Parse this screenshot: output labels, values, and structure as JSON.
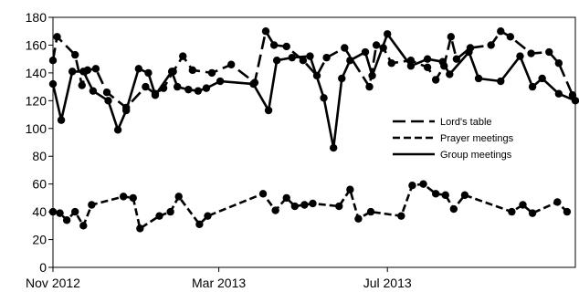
{
  "chart_data": {
    "type": "line",
    "title": "",
    "xlabel": "",
    "ylabel": "",
    "ylim": [
      0,
      180
    ],
    "yticks": [
      0,
      20,
      40,
      60,
      80,
      100,
      120,
      140,
      160,
      180
    ],
    "xlim": [
      "2012-11-01",
      "2013-11-14"
    ],
    "xticks": [
      {
        "date": "2012-11-01",
        "label": "Nov 2012"
      },
      {
        "date": "2013-03-01",
        "label": "Mar 2013"
      },
      {
        "date": "2013-07-01",
        "label": "Jul 2013"
      }
    ],
    "grid": false,
    "legend_position": "right",
    "series": [
      {
        "name": "Lord's table",
        "style": "long-dash",
        "color": "#000000",
        "markers": true,
        "points": [
          [
            "2012-11-01",
            149
          ],
          [
            "2012-11-04",
            166
          ],
          [
            "2012-11-17",
            153
          ],
          [
            "2012-11-22",
            131
          ],
          [
            "2012-11-26",
            142
          ],
          [
            "2012-12-02",
            143
          ],
          [
            "2012-12-10",
            126
          ],
          [
            "2012-12-24",
            115
          ],
          [
            "2013-01-07",
            130
          ],
          [
            "2013-01-14",
            125
          ],
          [
            "2013-01-20",
            129
          ],
          [
            "2013-01-27",
            141
          ],
          [
            "2013-02-03",
            152
          ],
          [
            "2013-02-10",
            142
          ],
          [
            "2013-02-24",
            140
          ],
          [
            "2013-03-10",
            146
          ],
          [
            "2013-03-27",
            133
          ],
          [
            "2013-04-04",
            170
          ],
          [
            "2013-04-10",
            160
          ],
          [
            "2013-04-19",
            159
          ],
          [
            "2013-05-01",
            149
          ],
          [
            "2013-05-11",
            138
          ],
          [
            "2013-05-18",
            151
          ],
          [
            "2013-05-31",
            158
          ],
          [
            "2013-06-18",
            130
          ],
          [
            "2013-06-23",
            160
          ],
          [
            "2013-06-28",
            158
          ],
          [
            "2013-07-04",
            147
          ],
          [
            "2013-07-18",
            149
          ],
          [
            "2013-07-30",
            144
          ],
          [
            "2013-08-05",
            135
          ],
          [
            "2013-08-11",
            145
          ],
          [
            "2013-08-16",
            166
          ],
          [
            "2013-08-20",
            150
          ],
          [
            "2013-08-30",
            158
          ],
          [
            "2013-09-14",
            160
          ],
          [
            "2013-09-21",
            170
          ],
          [
            "2013-09-28",
            166
          ],
          [
            "2013-10-13",
            154
          ],
          [
            "2013-10-26",
            155
          ],
          [
            "2013-11-02",
            147
          ],
          [
            "2013-11-12",
            124
          ]
        ]
      },
      {
        "name": "Prayer meetings",
        "style": "dash",
        "color": "#000000",
        "markers": true,
        "points": [
          [
            "2012-11-01",
            40
          ],
          [
            "2012-11-06",
            39
          ],
          [
            "2012-11-11",
            34
          ],
          [
            "2012-11-17",
            40
          ],
          [
            "2012-11-23",
            30
          ],
          [
            "2012-11-29",
            45
          ],
          [
            "2012-12-22",
            51
          ],
          [
            "2012-12-29",
            50
          ],
          [
            "2013-01-03",
            28
          ],
          [
            "2013-01-17",
            37
          ],
          [
            "2013-01-25",
            40
          ],
          [
            "2013-01-31",
            51
          ],
          [
            "2013-02-15",
            31
          ],
          [
            "2013-02-21",
            37
          ],
          [
            "2013-04-02",
            53
          ],
          [
            "2013-04-11",
            41
          ],
          [
            "2013-04-19",
            50
          ],
          [
            "2013-04-25",
            44
          ],
          [
            "2013-05-02",
            45
          ],
          [
            "2013-05-08",
            46
          ],
          [
            "2013-05-27",
            44
          ],
          [
            "2013-06-04",
            56
          ],
          [
            "2013-06-10",
            35
          ],
          [
            "2013-06-19",
            40
          ],
          [
            "2013-07-11",
            37
          ],
          [
            "2013-07-19",
            59
          ],
          [
            "2013-07-27",
            60
          ],
          [
            "2013-08-05",
            53
          ],
          [
            "2013-08-12",
            52
          ],
          [
            "2013-08-18",
            42
          ],
          [
            "2013-08-26",
            52
          ],
          [
            "2013-09-29",
            40
          ],
          [
            "2013-10-07",
            45
          ],
          [
            "2013-10-14",
            39
          ],
          [
            "2013-11-01",
            47
          ],
          [
            "2013-11-08",
            40
          ]
        ]
      },
      {
        "name": "Group meetings",
        "style": "solid",
        "color": "#000000",
        "markers": true,
        "points": [
          [
            "2012-11-01",
            132
          ],
          [
            "2012-11-07",
            106
          ],
          [
            "2012-11-15",
            141
          ],
          [
            "2012-11-23",
            141
          ],
          [
            "2012-11-30",
            127
          ],
          [
            "2012-12-11",
            120
          ],
          [
            "2012-12-18",
            99
          ],
          [
            "2012-12-24",
            113
          ],
          [
            "2013-01-02",
            143
          ],
          [
            "2013-01-09",
            140
          ],
          [
            "2013-01-14",
            124
          ],
          [
            "2013-01-26",
            141
          ],
          [
            "2013-01-30",
            130
          ],
          [
            "2013-02-07",
            128
          ],
          [
            "2013-02-14",
            127
          ],
          [
            "2013-02-20",
            129
          ],
          [
            "2013-03-02",
            134
          ],
          [
            "2013-03-26",
            132
          ],
          [
            "2013-04-06",
            113
          ],
          [
            "2013-04-12",
            149
          ],
          [
            "2013-04-23",
            151
          ],
          [
            "2013-05-06",
            152
          ],
          [
            "2013-05-16",
            122
          ],
          [
            "2013-05-23",
            86
          ],
          [
            "2013-05-29",
            136
          ],
          [
            "2013-06-04",
            149
          ],
          [
            "2013-06-15",
            155
          ],
          [
            "2013-06-20",
            138
          ],
          [
            "2013-07-01",
            168
          ],
          [
            "2013-07-18",
            145
          ],
          [
            "2013-07-30",
            150
          ],
          [
            "2013-08-10",
            148
          ],
          [
            "2013-08-15",
            139
          ],
          [
            "2013-08-29",
            155
          ],
          [
            "2013-09-05",
            136
          ],
          [
            "2013-09-21",
            134
          ],
          [
            "2013-10-05",
            152
          ],
          [
            "2013-10-14",
            130
          ],
          [
            "2013-10-21",
            136
          ],
          [
            "2013-11-02",
            125
          ],
          [
            "2013-11-14",
            120
          ]
        ]
      }
    ]
  }
}
